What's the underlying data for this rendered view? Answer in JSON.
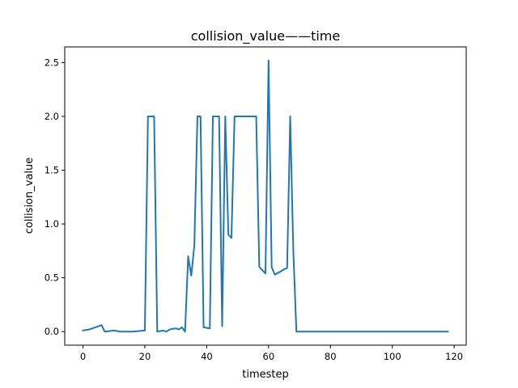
{
  "chart_data": {
    "type": "line",
    "title": "collision_value——time",
    "xlabel": "timestep",
    "ylabel": "collision_value",
    "xlim": [
      -5.9,
      123.9
    ],
    "ylim": [
      -0.126,
      2.646
    ],
    "xticks": [
      0,
      20,
      40,
      60,
      80,
      100,
      120
    ],
    "yticks": [
      0.0,
      0.5,
      1.0,
      1.5,
      2.0,
      2.5
    ],
    "xtick_labels": [
      "0",
      "20",
      "40",
      "60",
      "80",
      "100",
      "120"
    ],
    "ytick_labels": [
      "0.0",
      "0.5",
      "1.0",
      "1.5",
      "2.0",
      "2.5"
    ],
    "grid": false,
    "series": [
      {
        "color": "#1f77b4",
        "x": [
          0,
          2,
          4,
          6,
          7,
          10,
          12,
          16,
          20,
          21,
          23,
          24,
          26,
          27,
          28,
          30,
          31,
          32,
          33,
          34,
          35,
          36,
          37,
          38,
          39,
          41,
          42,
          44,
          45,
          46,
          47,
          48,
          49,
          50,
          52,
          54,
          56,
          57,
          59,
          60,
          61,
          62,
          64,
          65,
          66,
          67,
          68,
          69,
          118
        ],
        "y": [
          0.01,
          0.02,
          0.04,
          0.06,
          0.0,
          0.01,
          0.0,
          0.0,
          0.01,
          2.0,
          2.0,
          0.0,
          0.01,
          0.0,
          0.02,
          0.03,
          0.02,
          0.04,
          0.0,
          0.7,
          0.52,
          0.8,
          2.0,
          2.0,
          0.04,
          0.03,
          2.0,
          2.0,
          0.05,
          2.0,
          0.9,
          0.87,
          2.0,
          2.0,
          2.0,
          2.0,
          2.0,
          0.6,
          0.54,
          2.52,
          0.6,
          0.53,
          0.56,
          0.58,
          0.59,
          2.0,
          0.75,
          0.0,
          0.0
        ]
      }
    ]
  }
}
